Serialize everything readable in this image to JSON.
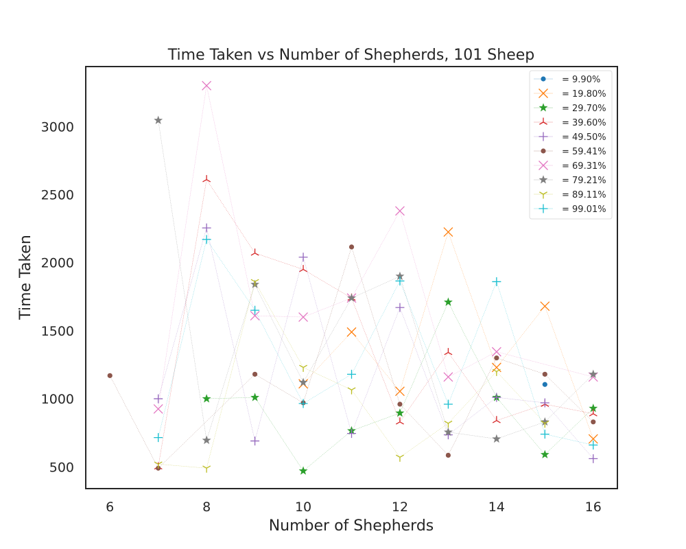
{
  "chart_data": {
    "type": "scatter",
    "title": "Time Taken vs Number of Shepherds, 101 Sheep",
    "xlabel": "Number of Shepherds",
    "ylabel": "Time Taken",
    "xlim": [
      5.5,
      16.5
    ],
    "ylim": [
      340,
      3440
    ],
    "xticks": [
      6,
      8,
      10,
      12,
      14,
      16
    ],
    "yticks": [
      500,
      1000,
      1500,
      2000,
      2500,
      3000
    ],
    "grid": false,
    "legend_position": "top-right",
    "series": [
      {
        "name": "= 9.90%",
        "color": "#1f77b4",
        "marker": "circle",
        "x": [
          15
        ],
        "y": [
          1105
        ]
      },
      {
        "name": "= 19.80%",
        "color": "#ff7f0e",
        "marker": "x",
        "x": [
          10,
          11,
          12,
          13,
          14,
          15,
          16
        ],
        "y": [
          1110,
          1490,
          1055,
          2225,
          1230,
          1680,
          705
        ]
      },
      {
        "name": "= 29.70%",
        "color": "#2ca02c",
        "marker": "star",
        "x": [
          8,
          9,
          10,
          11,
          12,
          13,
          14,
          15,
          16
        ],
        "y": [
          1000,
          1010,
          470,
          765,
          895,
          1710,
          1010,
          590,
          930
        ]
      },
      {
        "name": "= 39.60%",
        "color": "#d62728",
        "marker": "tri_down",
        "x": [
          7,
          8,
          9,
          10,
          11,
          12,
          13,
          14,
          15,
          16
        ],
        "y": [
          500,
          2610,
          2070,
          1950,
          1740,
          830,
          1340,
          840,
          960,
          890
        ]
      },
      {
        "name": "= 49.50%",
        "color": "#9467bd",
        "marker": "plus",
        "x": [
          7,
          8,
          9,
          10,
          11,
          12,
          13,
          14,
          15,
          16
        ],
        "y": [
          1000,
          2255,
          690,
          2040,
          745,
          1670,
          735,
          1010,
          970,
          560
        ]
      },
      {
        "name": "= 59.41%",
        "color": "#8c564b",
        "marker": "circle",
        "x": [
          6,
          7,
          9,
          10,
          11,
          12,
          13,
          14,
          15,
          16
        ],
        "y": [
          1170,
          490,
          1180,
          970,
          2115,
          960,
          585,
          1300,
          1180,
          830
        ]
      },
      {
        "name": "= 69.31%",
        "color": "#e377c2",
        "marker": "x",
        "x": [
          7,
          8,
          9,
          10,
          11,
          12,
          13,
          14,
          16
        ],
        "y": [
          925,
          3300,
          1610,
          1600,
          1740,
          2380,
          1160,
          1345,
          1160
        ]
      },
      {
        "name": "= 79.21%",
        "color": "#7f7f7f",
        "marker": "star",
        "x": [
          7,
          8,
          9,
          10,
          11,
          12,
          13,
          14,
          15,
          16
        ],
        "y": [
          3045,
          695,
          1840,
          1120,
          1740,
          1900,
          755,
          705,
          830,
          1180
        ]
      },
      {
        "name": "= 89.11%",
        "color": "#bcbd22",
        "marker": "tri_up",
        "x": [
          7,
          8,
          9,
          10,
          11,
          12,
          13,
          14,
          15
        ],
        "y": [
          520,
          490,
          1860,
          1230,
          1065,
          570,
          820,
          1200,
          820
        ]
      },
      {
        "name": "= 99.01%",
        "color": "#17becf",
        "marker": "plus",
        "x": [
          7,
          8,
          9,
          10,
          11,
          12,
          13,
          14,
          15,
          16
        ],
        "y": [
          715,
          2170,
          1650,
          965,
          1180,
          1865,
          960,
          1860,
          740,
          660
        ]
      }
    ]
  }
}
